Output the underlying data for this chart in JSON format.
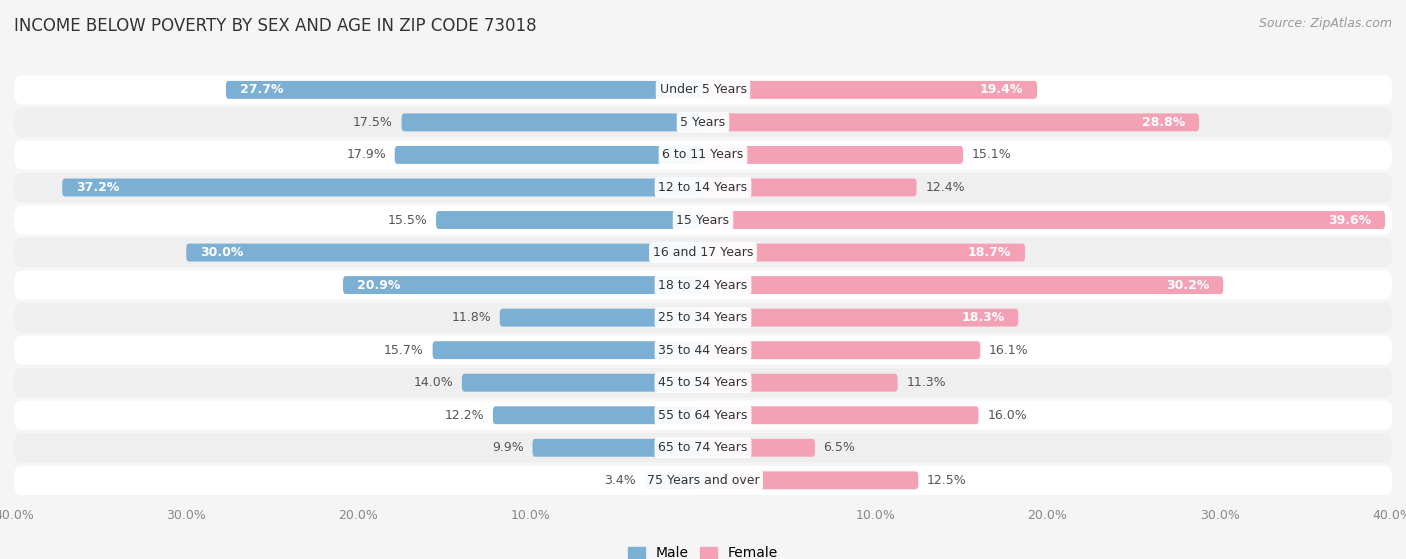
{
  "title": "INCOME BELOW POVERTY BY SEX AND AGE IN ZIP CODE 73018",
  "source": "Source: ZipAtlas.com",
  "categories": [
    "Under 5 Years",
    "5 Years",
    "6 to 11 Years",
    "12 to 14 Years",
    "15 Years",
    "16 and 17 Years",
    "18 to 24 Years",
    "25 to 34 Years",
    "35 to 44 Years",
    "45 to 54 Years",
    "55 to 64 Years",
    "65 to 74 Years",
    "75 Years and over"
  ],
  "male": [
    27.7,
    17.5,
    17.9,
    37.2,
    15.5,
    30.0,
    20.9,
    11.8,
    15.7,
    14.0,
    12.2,
    9.9,
    3.4
  ],
  "female": [
    19.4,
    28.8,
    15.1,
    12.4,
    39.6,
    18.7,
    30.2,
    18.3,
    16.1,
    11.3,
    16.0,
    6.5,
    12.5
  ],
  "male_color": "#7bafd4",
  "female_color": "#f4a0b5",
  "axis_limit": 40.0,
  "bar_height": 0.55,
  "background_color": "#f5f5f5",
  "row_bg_light": "#ffffff",
  "row_bg_dark": "#efefef",
  "title_fontsize": 12,
  "label_fontsize": 9,
  "cat_fontsize": 9,
  "tick_fontsize": 9,
  "source_fontsize": 9
}
